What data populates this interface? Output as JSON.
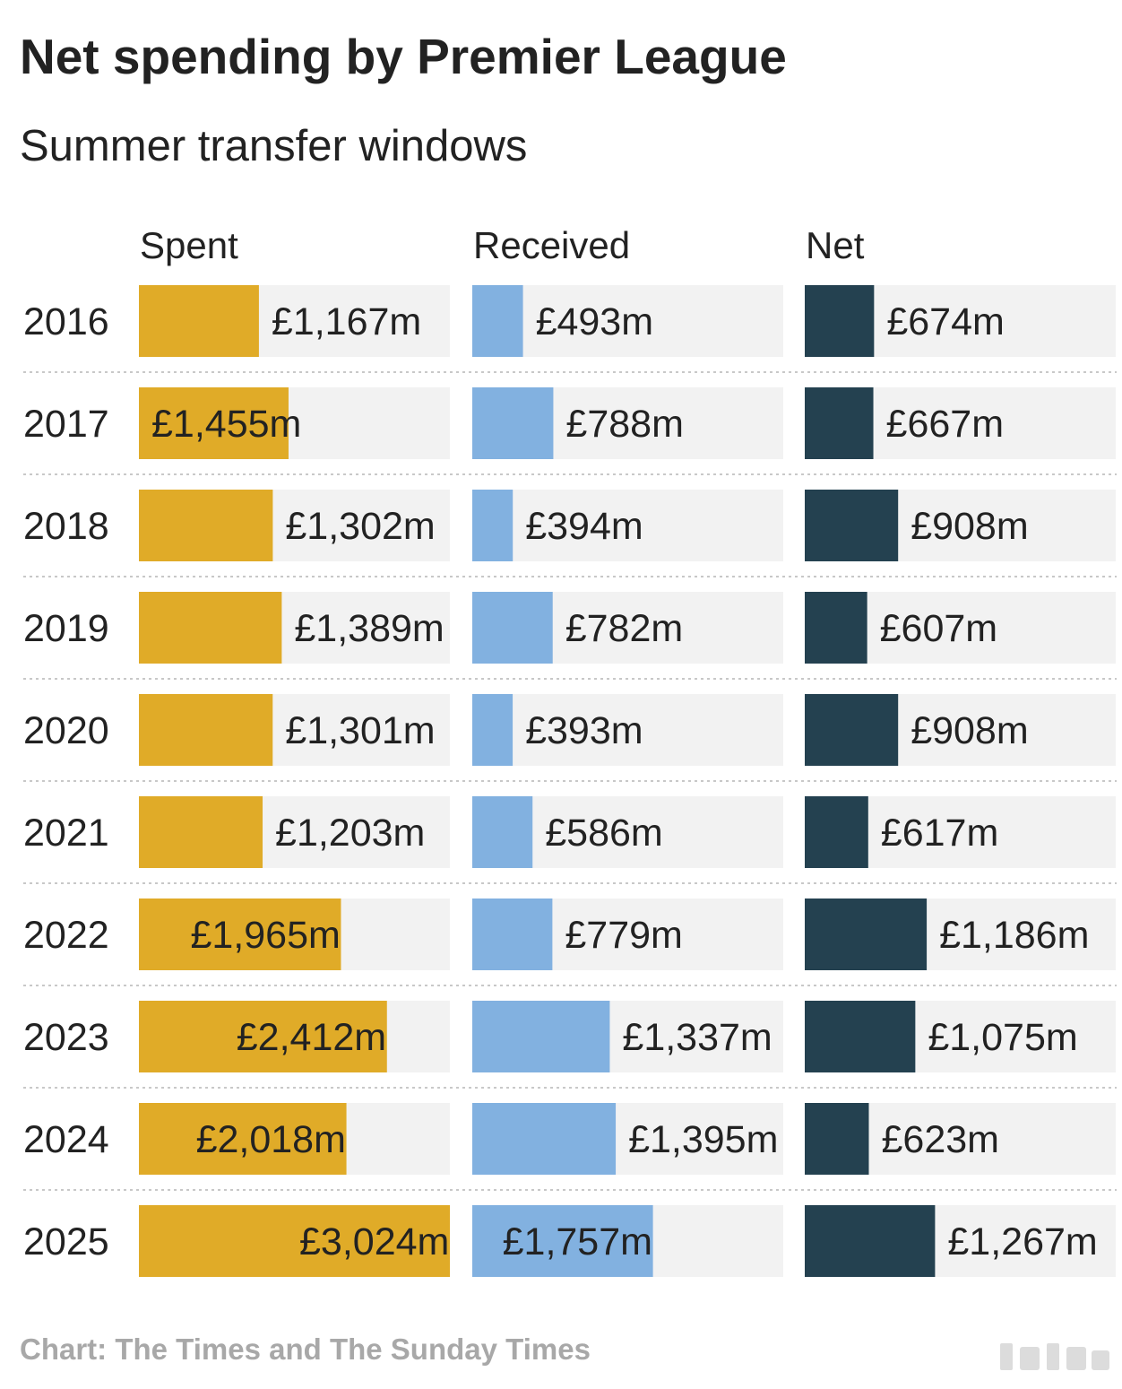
{
  "title": "Net spending by Premier League",
  "subtitle": "Summer transfer windows",
  "footer": "Chart: The Times and The Sunday Times",
  "colors": {
    "spent": "#e0ab28",
    "received": "#82b1e0",
    "net": "#244150",
    "track": "#f2f2f2",
    "separator": "#c8c8c8"
  },
  "chart_data": {
    "type": "bar",
    "orientation": "horizontal",
    "layout": "small-multiples",
    "columns": [
      "Spent",
      "Received",
      "Net"
    ],
    "categories": [
      "2016",
      "2017",
      "2018",
      "2019",
      "2020",
      "2021",
      "2022",
      "2023",
      "2024",
      "2025"
    ],
    "unit": "£m",
    "xlim": [
      0,
      3024
    ],
    "grid": false,
    "series": [
      {
        "name": "Spent",
        "values": [
          1167,
          1455,
          1302,
          1389,
          1301,
          1203,
          1965,
          2412,
          2018,
          3024
        ],
        "labels": [
          "£1,167m",
          "£1,455m",
          "£1,302m",
          "£1,389m",
          "£1,301m",
          "£1,203m",
          "£1,965m",
          "£2,412m",
          "£2,018m",
          "£3,024m"
        ]
      },
      {
        "name": "Received",
        "values": [
          493,
          788,
          394,
          782,
          393,
          586,
          779,
          1337,
          1395,
          1757
        ],
        "labels": [
          "£493m",
          "£788m",
          "£394m",
          "£782m",
          "£393m",
          "£586m",
          "£779m",
          "£1,337m",
          "£1,395m",
          "£1,757m"
        ]
      },
      {
        "name": "Net",
        "values": [
          674,
          667,
          908,
          607,
          908,
          617,
          1186,
          1075,
          623,
          1267
        ],
        "labels": [
          "£674m",
          "£667m",
          "£908m",
          "£607m",
          "£908m",
          "£617m",
          "£1,186m",
          "£1,075m",
          "£623m",
          "£1,267m"
        ]
      }
    ]
  }
}
